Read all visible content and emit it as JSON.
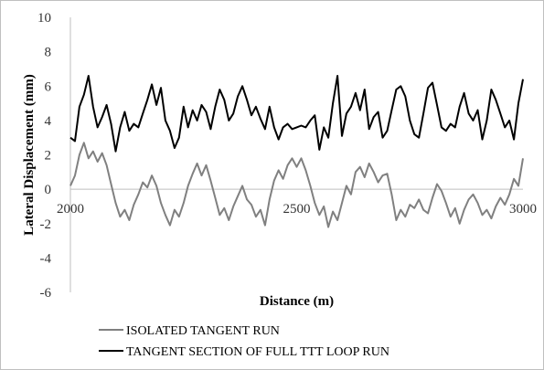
{
  "chart_data": {
    "type": "line",
    "xlabel": "Distance (m)",
    "ylabel": "Lateral Displacement (mm)",
    "xlim": [
      2000,
      3000
    ],
    "ylim": [
      -6,
      10
    ],
    "x_ticks": [
      "2000",
      "2500",
      "3000"
    ],
    "y_ticks": [
      "10",
      "8",
      "6",
      "4",
      "2",
      "0",
      "-2",
      "-4",
      "-6"
    ],
    "grid": "none",
    "legend_position": "bottom",
    "series": [
      {
        "name": "ISOLATED TANGENT RUN",
        "color": "#808080",
        "x": [
          2000,
          2010,
          2020,
          2030,
          2040,
          2050,
          2060,
          2070,
          2080,
          2090,
          2100,
          2110,
          2120,
          2130,
          2140,
          2150,
          2160,
          2170,
          2180,
          2190,
          2200,
          2210,
          2220,
          2230,
          2240,
          2250,
          2260,
          2270,
          2280,
          2290,
          2300,
          2310,
          2320,
          2330,
          2340,
          2350,
          2360,
          2370,
          2380,
          2390,
          2400,
          2410,
          2420,
          2430,
          2440,
          2450,
          2460,
          2470,
          2480,
          2490,
          2500,
          2510,
          2520,
          2530,
          2540,
          2550,
          2560,
          2570,
          2580,
          2590,
          2600,
          2610,
          2620,
          2630,
          2640,
          2650,
          2660,
          2670,
          2680,
          2690,
          2700,
          2710,
          2720,
          2730,
          2740,
          2750,
          2760,
          2770,
          2780,
          2790,
          2800,
          2810,
          2820,
          2830,
          2840,
          2850,
          2860,
          2870,
          2880,
          2890,
          2900,
          2910,
          2920,
          2930,
          2940,
          2950,
          2960,
          2970,
          2980,
          2990,
          3000
        ],
        "y": [
          0.2,
          0.8,
          2.0,
          2.7,
          1.8,
          2.2,
          1.6,
          2.1,
          1.4,
          0.3,
          -0.8,
          -1.6,
          -1.2,
          -1.8,
          -0.9,
          -0.3,
          0.4,
          0.1,
          0.8,
          0.2,
          -0.8,
          -1.5,
          -2.1,
          -1.2,
          -1.6,
          -0.8,
          0.2,
          0.9,
          1.5,
          0.8,
          1.4,
          0.5,
          -0.5,
          -1.5,
          -1.1,
          -1.8,
          -1.0,
          -0.4,
          0.2,
          -0.6,
          -0.9,
          -1.6,
          -1.2,
          -2.1,
          -0.6,
          0.5,
          1.1,
          0.6,
          1.4,
          1.8,
          1.3,
          1.8,
          1.1,
          0.2,
          -0.8,
          -1.5,
          -1.0,
          -2.2,
          -1.3,
          -1.8,
          -0.8,
          0.2,
          -0.3,
          1.0,
          1.3,
          0.7,
          1.5,
          1.0,
          0.4,
          0.8,
          0.9,
          -0.3,
          -1.8,
          -1.2,
          -1.6,
          -0.9,
          -1.1,
          -0.6,
          -1.2,
          -1.4,
          -0.5,
          0.3,
          -0.1,
          -0.8,
          -1.6,
          -1.1,
          -2.0,
          -1.2,
          -0.6,
          -0.3,
          -0.8,
          -1.5,
          -1.2,
          -1.7,
          -1.0,
          -0.5,
          -0.9,
          -0.3,
          0.6,
          0.2,
          1.8
        ]
      },
      {
        "name": "TANGENT SECTION OF FULL TTT LOOP RUN",
        "color": "#000000",
        "x": [
          2000,
          2010,
          2020,
          2030,
          2040,
          2050,
          2060,
          2070,
          2080,
          2090,
          2100,
          2110,
          2120,
          2130,
          2140,
          2150,
          2160,
          2170,
          2180,
          2190,
          2200,
          2210,
          2220,
          2230,
          2240,
          2250,
          2260,
          2270,
          2280,
          2290,
          2300,
          2310,
          2320,
          2330,
          2340,
          2350,
          2360,
          2370,
          2380,
          2390,
          2400,
          2410,
          2420,
          2430,
          2440,
          2450,
          2460,
          2470,
          2480,
          2490,
          2500,
          2510,
          2520,
          2530,
          2540,
          2550,
          2560,
          2570,
          2580,
          2590,
          2600,
          2610,
          2620,
          2630,
          2640,
          2650,
          2660,
          2670,
          2680,
          2690,
          2700,
          2710,
          2720,
          2730,
          2740,
          2750,
          2760,
          2770,
          2780,
          2790,
          2800,
          2810,
          2820,
          2830,
          2840,
          2850,
          2860,
          2870,
          2880,
          2890,
          2900,
          2910,
          2920,
          2930,
          2940,
          2950,
          2960,
          2970,
          2980,
          2990,
          3000
        ],
        "y": [
          3.0,
          2.8,
          4.8,
          5.5,
          6.6,
          4.8,
          3.6,
          4.2,
          4.9,
          3.8,
          2.2,
          3.6,
          4.5,
          3.4,
          3.8,
          3.6,
          4.4,
          5.2,
          6.1,
          4.9,
          5.9,
          4.0,
          3.4,
          2.4,
          3.0,
          4.8,
          3.6,
          4.6,
          4.0,
          4.9,
          4.5,
          3.5,
          4.8,
          5.8,
          5.2,
          4.0,
          4.4,
          5.4,
          6.0,
          5.2,
          4.3,
          4.8,
          4.1,
          3.5,
          4.8,
          3.6,
          2.9,
          3.6,
          3.8,
          3.5,
          3.6,
          3.7,
          3.6,
          4.0,
          4.3,
          2.3,
          3.6,
          3.0,
          5.0,
          6.6,
          3.1,
          4.4,
          4.8,
          5.6,
          4.6,
          5.8,
          3.5,
          4.2,
          4.5,
          3.0,
          3.4,
          4.6,
          5.8,
          6.0,
          5.4,
          4.0,
          3.2,
          3.0,
          4.4,
          5.9,
          6.2,
          4.9,
          3.6,
          3.4,
          3.8,
          3.6,
          4.8,
          5.6,
          4.4,
          4.0,
          4.6,
          2.9,
          4.0,
          5.8,
          5.2,
          4.4,
          3.6,
          4.0,
          2.9,
          5.0,
          6.4
        ]
      }
    ]
  }
}
